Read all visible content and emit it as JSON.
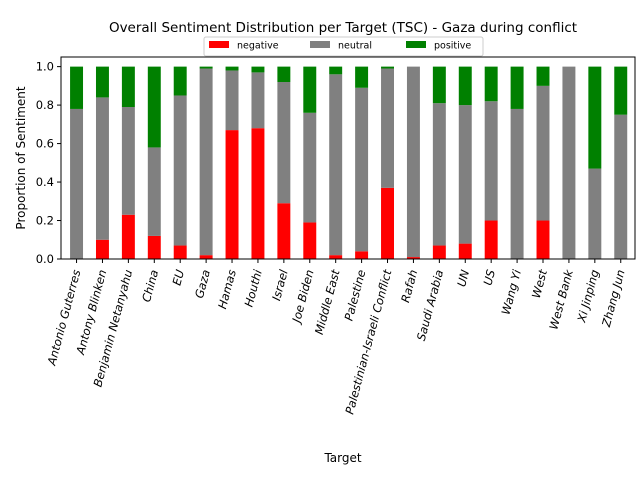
{
  "chart_data": {
    "type": "bar",
    "stacked": true,
    "title": "Overall Sentiment Distribution per Target (TSC) - Gaza during conflict",
    "xlabel": "Target",
    "ylabel": "Proportion of Sentiment",
    "ylim": [
      0,
      1.05
    ],
    "yticks": [
      "0.0",
      "0.2",
      "0.4",
      "0.6",
      "0.8",
      "1.0"
    ],
    "grid": false,
    "legend_position": "top-center",
    "categories": [
      "Antonio Guterres",
      "Antony Blinken",
      "Benjamin Netanyahu",
      "China",
      "EU",
      "Gaza",
      "Hamas",
      "Houthi",
      "Israel",
      "Joe Biden",
      "Middle East",
      "Palestine",
      "Palestinian-Israeli Conflict",
      "Rafah",
      "Saudi Arabia",
      "UN",
      "US",
      "Wang Yi",
      "West",
      "West Bank",
      "Xi Jinping",
      "Zhang Jun"
    ],
    "series": [
      {
        "name": "negative",
        "color": "#ff0000",
        "values": [
          0.0,
          0.1,
          0.23,
          0.12,
          0.07,
          0.02,
          0.67,
          0.68,
          0.29,
          0.19,
          0.02,
          0.04,
          0.37,
          0.01,
          0.07,
          0.08,
          0.2,
          0.0,
          0.2,
          0.0,
          0.0,
          0.0
        ]
      },
      {
        "name": "neutral",
        "color": "#808080",
        "values": [
          0.78,
          0.74,
          0.56,
          0.46,
          0.78,
          0.97,
          0.31,
          0.29,
          0.63,
          0.57,
          0.94,
          0.85,
          0.62,
          0.99,
          0.74,
          0.72,
          0.62,
          0.78,
          0.7,
          1.0,
          0.47,
          0.75
        ]
      },
      {
        "name": "positive",
        "color": "#008000",
        "values": [
          0.22,
          0.16,
          0.21,
          0.42,
          0.15,
          0.01,
          0.02,
          0.03,
          0.08,
          0.24,
          0.04,
          0.11,
          0.01,
          0.0,
          0.19,
          0.2,
          0.18,
          0.22,
          0.1,
          0.0,
          0.53,
          0.25
        ]
      }
    ]
  }
}
